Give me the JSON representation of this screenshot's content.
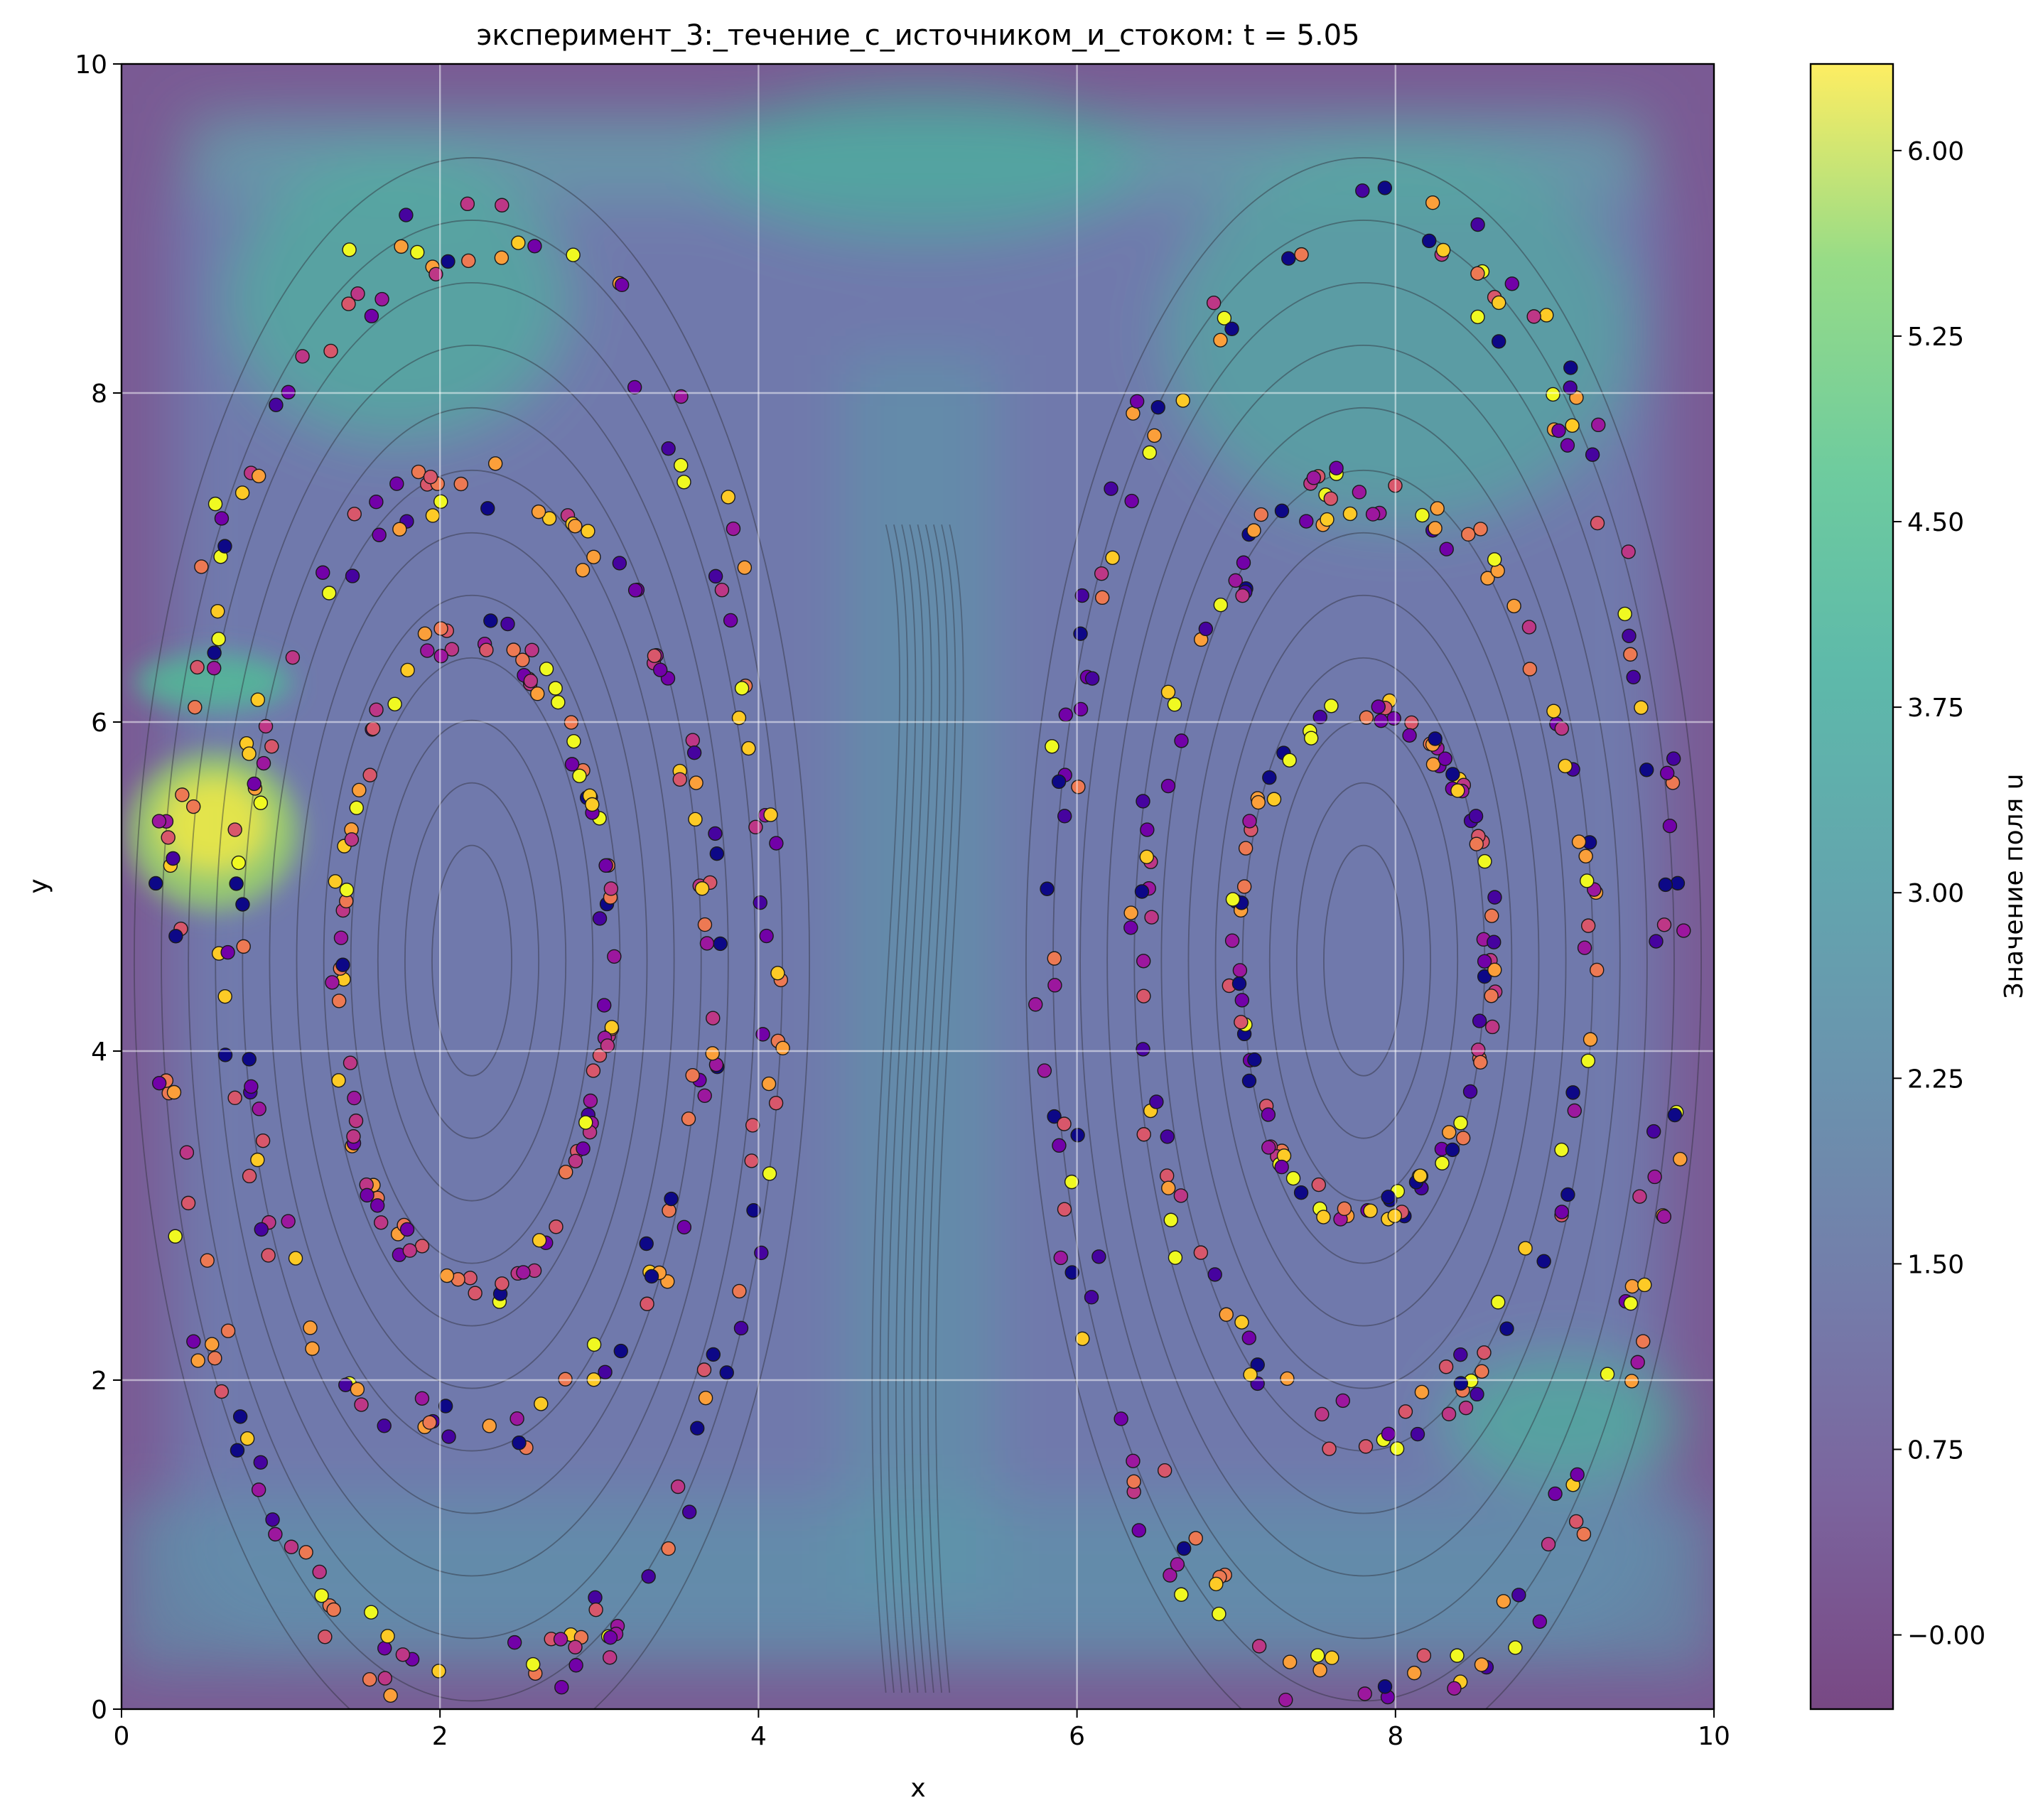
{
  "chart_data": {
    "type": "scatter",
    "title": "эксперимент_3:_течение_с_источником_и_стоком: t = 5.05",
    "xlabel": "x",
    "ylabel": "y",
    "xlim": [
      0,
      10
    ],
    "ylim": [
      0,
      10
    ],
    "x_ticks": [
      "0",
      "2",
      "4",
      "6",
      "8",
      "10"
    ],
    "y_ticks": [
      "0",
      "2",
      "4",
      "6",
      "8",
      "10"
    ],
    "grid": true,
    "background_field": "filled contour of u (viridis, alpha ~0.7) with streamlines (dark gray)",
    "colorbar": {
      "label": "Значение поля u",
      "range": [
        -0.3,
        6.35
      ],
      "ticks": [
        "−0.00",
        "0.75",
        "1.50",
        "2.25",
        "3.00",
        "3.75",
        "4.50",
        "5.25",
        "6.00"
      ],
      "tick_values": [
        0,
        0.75,
        1.5,
        2.25,
        3.0,
        3.75,
        4.5,
        5.25,
        6.0
      ],
      "colormap": "viridis"
    },
    "particle_colormap": "plasma",
    "vortices": [
      {
        "name": "left",
        "cx": 2.2,
        "cy": 4.55
      },
      {
        "name": "right",
        "cx": 7.8,
        "cy": 4.55
      }
    ],
    "orbit_rings": [
      {
        "vortex": "left",
        "rx": 1.9,
        "ry": 4.45,
        "count": 150
      },
      {
        "vortex": "left",
        "rx": 1.5,
        "ry": 2.9,
        "count": 120
      },
      {
        "vortex": "left",
        "rx": 0.85,
        "ry": 2.0,
        "count": 110
      },
      {
        "vortex": "right",
        "rx": 1.95,
        "ry": 4.5,
        "count": 150
      },
      {
        "vortex": "right",
        "rx": 1.4,
        "ry": 2.85,
        "count": 120
      },
      {
        "vortex": "right",
        "rx": 0.8,
        "ry": 1.55,
        "count": 110
      }
    ]
  }
}
